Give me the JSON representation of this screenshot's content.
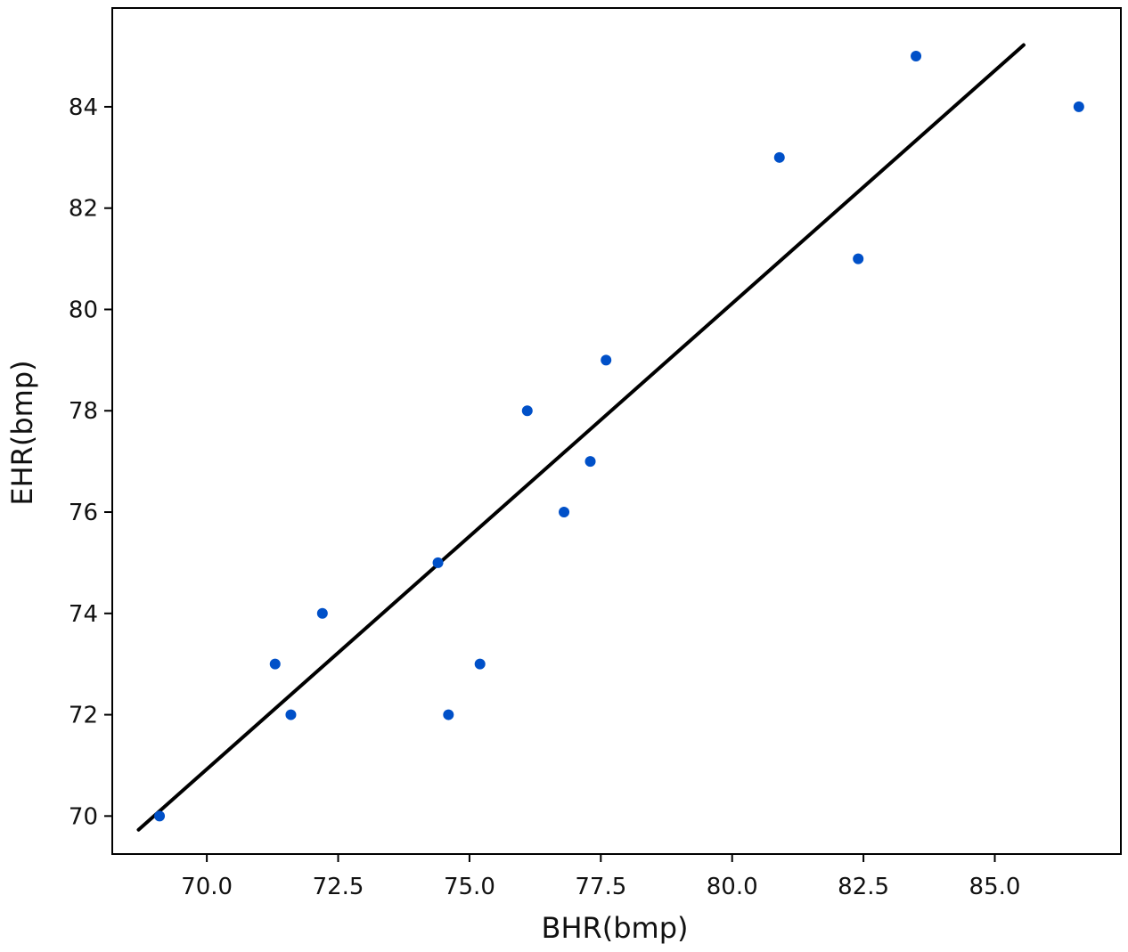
{
  "chart_data": {
    "type": "scatter",
    "title": "",
    "xlabel": "BHR(bmp)",
    "ylabel": "EHR(bmp)",
    "xlim": [
      68.2,
      87.4
    ],
    "ylim": [
      69.25,
      85.95
    ],
    "xticks": [
      70.0,
      72.5,
      75.0,
      77.5,
      80.0,
      82.5,
      85.0
    ],
    "xtick_labels": [
      "70.0",
      "72.5",
      "75.0",
      "77.5",
      "80.0",
      "82.5",
      "85.0"
    ],
    "yticks": [
      70,
      72,
      74,
      76,
      78,
      80,
      82,
      84
    ],
    "ytick_labels": [
      "70",
      "72",
      "74",
      "76",
      "78",
      "80",
      "82",
      "84"
    ],
    "grid": false,
    "legend": "none",
    "points": [
      {
        "x": 69.1,
        "y": 70
      },
      {
        "x": 71.3,
        "y": 73
      },
      {
        "x": 71.6,
        "y": 72
      },
      {
        "x": 72.2,
        "y": 74
      },
      {
        "x": 74.4,
        "y": 75
      },
      {
        "x": 74.6,
        "y": 72
      },
      {
        "x": 75.2,
        "y": 73
      },
      {
        "x": 76.1,
        "y": 78
      },
      {
        "x": 76.8,
        "y": 76
      },
      {
        "x": 77.3,
        "y": 77
      },
      {
        "x": 77.6,
        "y": 79
      },
      {
        "x": 80.9,
        "y": 83
      },
      {
        "x": 82.4,
        "y": 81
      },
      {
        "x": 83.5,
        "y": 85
      },
      {
        "x": 86.6,
        "y": 84
      }
    ],
    "fit_line": {
      "x": [
        68.7,
        85.55
      ],
      "y": [
        69.73,
        85.22
      ]
    },
    "colors": {
      "points": "#0050c8",
      "fit_line": "#000000",
      "axes": "#000000"
    }
  }
}
